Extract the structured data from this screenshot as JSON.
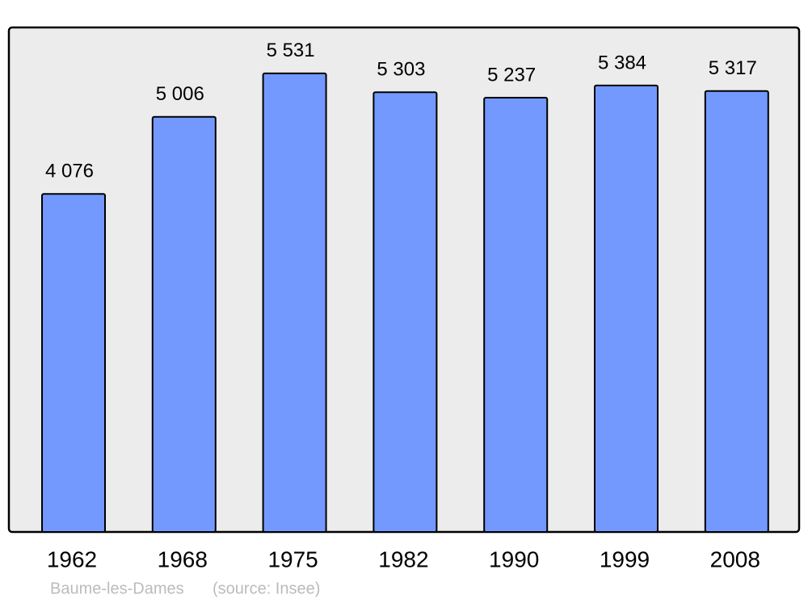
{
  "chart_data": {
    "type": "bar",
    "categories": [
      "1962",
      "1968",
      "1975",
      "1982",
      "1990",
      "1999",
      "2008"
    ],
    "values": [
      4076,
      5006,
      5531,
      5303,
      5237,
      5384,
      5317
    ],
    "value_labels": [
      "4 076",
      "5 006",
      "5 531",
      "5 303",
      "5 237",
      "5 384",
      "5 317"
    ],
    "color": "#7399ff",
    "caption": "Baume-les-Dames",
    "source": "(source: Insee)"
  }
}
